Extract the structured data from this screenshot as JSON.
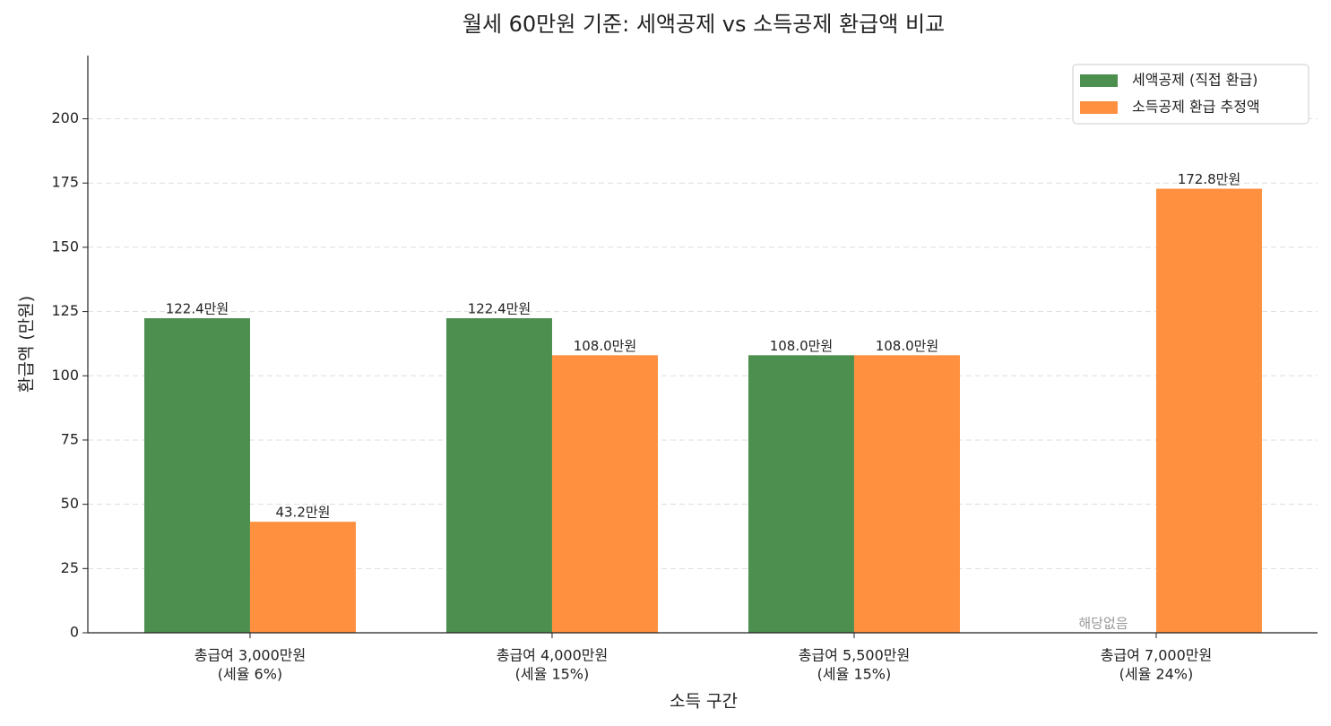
{
  "chart_data": {
    "type": "bar",
    "title": "월세 60만원 기준: 세액공제 vs 소득공제 환급액 비교",
    "xlabel": "소득 구간",
    "ylabel": "환급액 (만원)",
    "categories": [
      [
        "총급여 3,000만원",
        "(세율 6%)"
      ],
      [
        "총급여 4,000만원",
        "(세율 15%)"
      ],
      [
        "총급여 5,500만원",
        "(세율 15%)"
      ],
      [
        "총급여 7,000만원",
        "(세율 24%)"
      ]
    ],
    "series": [
      {
        "name": "세액공제 (직접 환급)",
        "color": "#4d8f4f",
        "label_color": "#2e6b30",
        "values": [
          122.4,
          122.4,
          108.0,
          null
        ],
        "value_labels": [
          "122.4만원",
          "122.4만원",
          "108.0만원",
          "해당없음"
        ]
      },
      {
        "name": "소득공제 환급 추정액",
        "color": "#ff9040",
        "label_color": "#e0600a",
        "values": [
          43.2,
          108.0,
          108.0,
          172.8
        ],
        "value_labels": [
          "43.2만원",
          "108.0만원",
          "108.0만원",
          "172.8만원"
        ]
      }
    ],
    "ylim": [
      0,
      224.6
    ],
    "yticks": [
      0,
      25,
      50,
      75,
      100,
      125,
      150,
      175,
      200
    ],
    "grid": true,
    "legend": "upper right"
  }
}
